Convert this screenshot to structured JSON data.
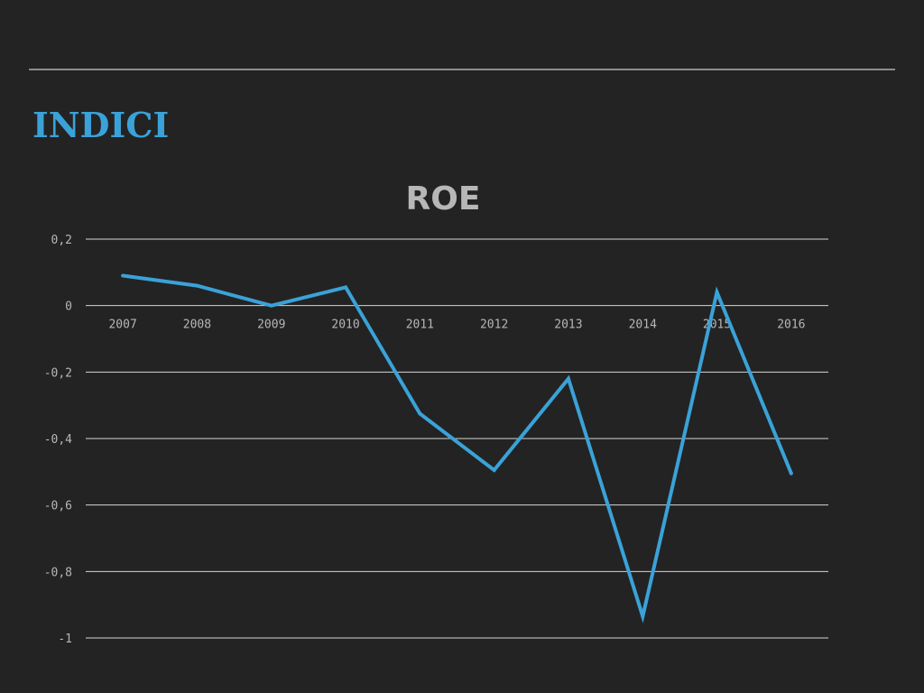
{
  "slide": {
    "heading": "INDICI",
    "accent_color": "#3aa2d8",
    "background": "#232323",
    "text_color": "#b7b7b7",
    "grid_color": "#d6d6d6"
  },
  "chart_data": {
    "type": "line",
    "title": "ROE",
    "xlabel": "",
    "ylabel": "",
    "categories": [
      "2007",
      "2008",
      "2009",
      "2010",
      "2011",
      "2012",
      "2013",
      "2014",
      "2015",
      "2016"
    ],
    "series": [
      {
        "values": [
          0.09,
          0.06,
          0.0,
          0.055,
          -0.325,
          -0.495,
          -0.22,
          -0.935,
          0.04,
          -0.505
        ],
        "color": "#3aa2d8"
      }
    ],
    "ylim": [
      -1,
      0.2
    ],
    "yticks": [
      0.2,
      0,
      -0.2,
      -0.4,
      -0.6,
      -0.8,
      -1
    ],
    "ytick_labels": [
      "0,2",
      "0",
      "-0,2",
      "-0,4",
      "-0,6",
      "-0,8",
      "-1"
    ],
    "grid": true,
    "legend": "none"
  }
}
